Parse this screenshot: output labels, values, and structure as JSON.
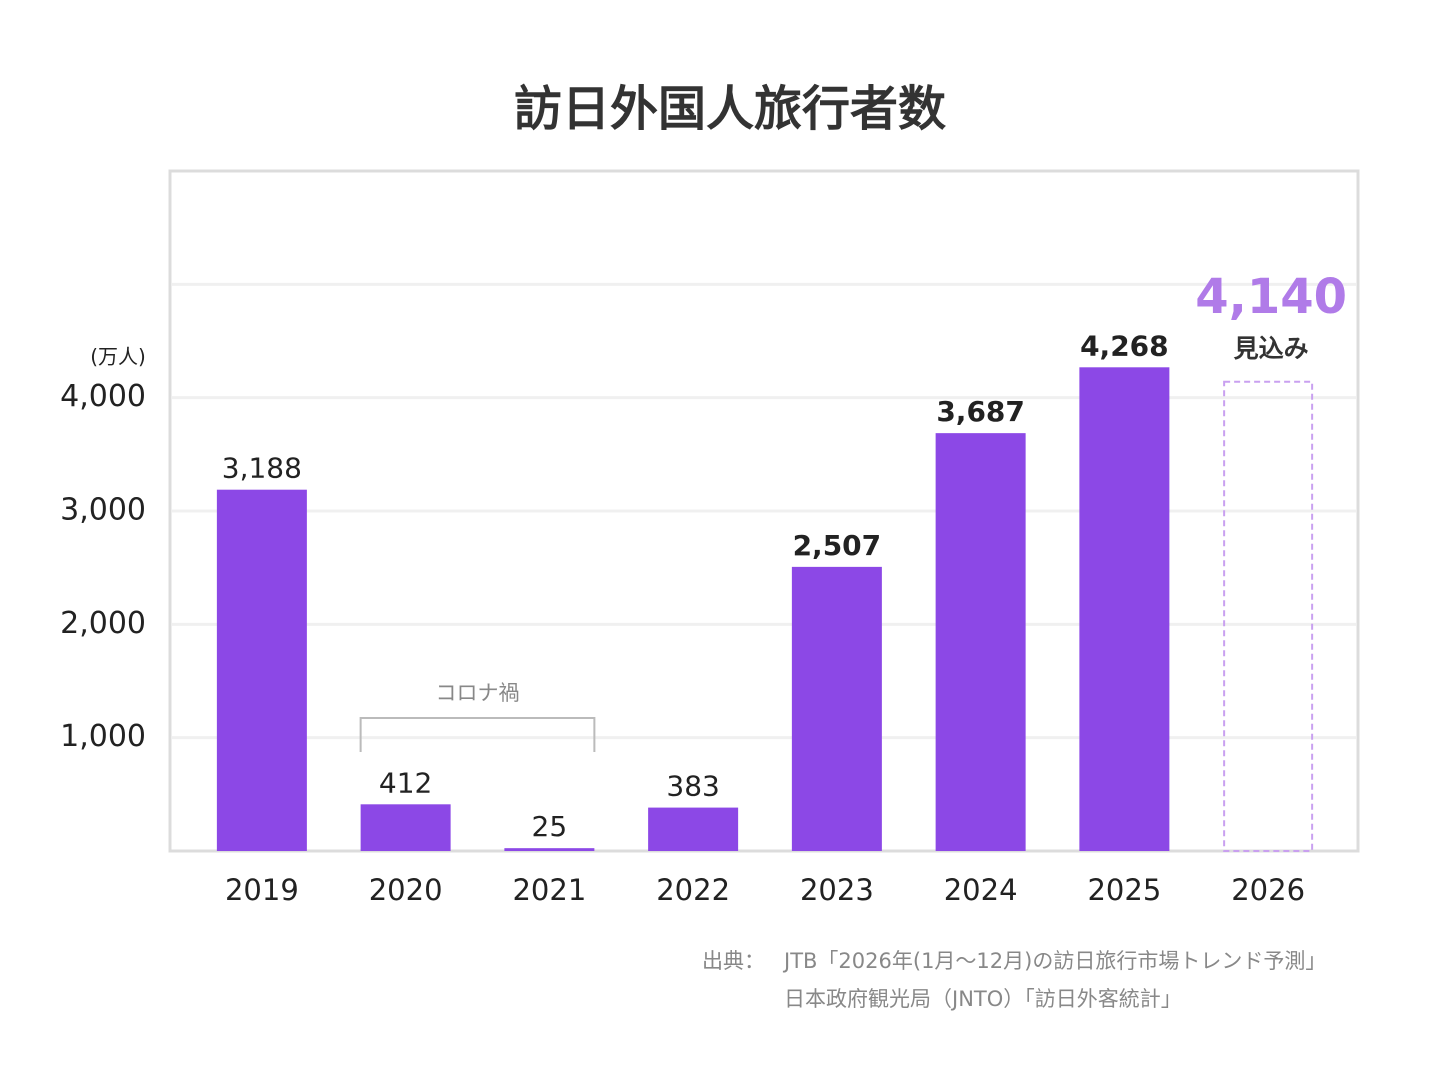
{
  "chart_data": {
    "type": "bar",
    "title": "訪日外国人旅行者数",
    "y_unit": "(万人)",
    "categories": [
      "2019",
      "2020",
      "2021",
      "2022",
      "2023",
      "2024",
      "2025",
      "2026"
    ],
    "values": [
      3188,
      412,
      25,
      383,
      2507,
      3687,
      4268,
      4140
    ],
    "value_labels": [
      "3,188",
      "412",
      "25",
      "383",
      "2,507",
      "3,687",
      "4,268",
      "4,140"
    ],
    "forecast": [
      false,
      false,
      false,
      false,
      false,
      false,
      false,
      true
    ],
    "forecast_label": "見込み",
    "color": "#8c48e6",
    "forecast_color": "#c9a0f0",
    "forecast_label_color": "#b07be8",
    "ylim": [
      0,
      6000
    ],
    "yticks": [
      {
        "value": 1000,
        "label": "1,000"
      },
      {
        "value": 2000,
        "label": "2,000"
      },
      {
        "value": 3000,
        "label": "3,000"
      },
      {
        "value": 4000,
        "label": "4,000"
      }
    ],
    "grid_lines": [
      1000,
      2000,
      3000,
      4000,
      5000
    ],
    "grid": true,
    "annotation": {
      "text": "コロナ禍",
      "from": 1,
      "to": 2
    },
    "source": {
      "prefix": "出典：",
      "lines": [
        "JTB「2026年(1月～12月)の訪日旅行市場トレンド予測」",
        "日本政府観光局（JNTO）「訪日外客統計」"
      ]
    }
  }
}
